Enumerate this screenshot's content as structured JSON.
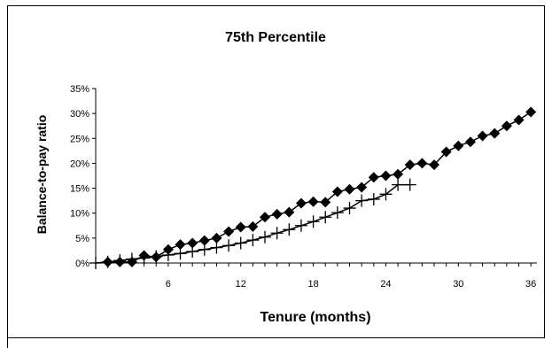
{
  "chart_data": {
    "type": "line",
    "title": "75th Percentile",
    "xlabel": "Tenure (months)",
    "ylabel": "Balance-to-pay ratio",
    "xlim": [
      0,
      36.5
    ],
    "ylim": [
      0,
      0.35
    ],
    "x_ticks": [
      6,
      12,
      18,
      24,
      30,
      36
    ],
    "y_ticks": [
      {
        "value": 0,
        "label": "0%"
      },
      {
        "value": 0.05,
        "label": "5%"
      },
      {
        "value": 0.1,
        "label": "10%"
      },
      {
        "value": 0.15,
        "label": "15%"
      },
      {
        "value": 0.2,
        "label": "20%"
      },
      {
        "value": 0.25,
        "label": "25%"
      },
      {
        "value": 0.3,
        "label": "30%"
      },
      {
        "value": 0.35,
        "label": "35%"
      }
    ],
    "grid": false,
    "legend": "none",
    "series": [
      {
        "marker": "diamond",
        "color": "#000000",
        "x": [
          1,
          2,
          3,
          4,
          5,
          6,
          7,
          8,
          9,
          10,
          11,
          12,
          13,
          14,
          15,
          16,
          17,
          18,
          19,
          20,
          21,
          22,
          23,
          24,
          25,
          26,
          27,
          28,
          29,
          30,
          31,
          32,
          33,
          34,
          35,
          36
        ],
        "values": [
          0.002,
          0.002,
          0.002,
          0.015,
          0.012,
          0.027,
          0.037,
          0.04,
          0.045,
          0.05,
          0.063,
          0.072,
          0.073,
          0.092,
          0.098,
          0.102,
          0.12,
          0.123,
          0.122,
          0.143,
          0.148,
          0.152,
          0.172,
          0.175,
          0.178,
          0.197,
          0.2,
          0.197,
          0.223,
          0.235,
          0.243,
          0.255,
          0.26,
          0.275,
          0.287,
          0.303
        ]
      },
      {
        "marker": "plus",
        "color": "#000000",
        "x": [
          0,
          1,
          2,
          3,
          4,
          5,
          6,
          7,
          8,
          9,
          10,
          11,
          12,
          13,
          14,
          15,
          16,
          17,
          18,
          19,
          20,
          21,
          22,
          23,
          24,
          25,
          26
        ],
        "values": [
          0.0,
          0.002,
          0.005,
          0.008,
          0.01,
          0.013,
          0.016,
          0.019,
          0.023,
          0.027,
          0.031,
          0.035,
          0.04,
          0.046,
          0.052,
          0.06,
          0.067,
          0.075,
          0.083,
          0.092,
          0.101,
          0.11,
          0.125,
          0.128,
          0.138,
          0.157,
          0.157
        ]
      }
    ]
  }
}
